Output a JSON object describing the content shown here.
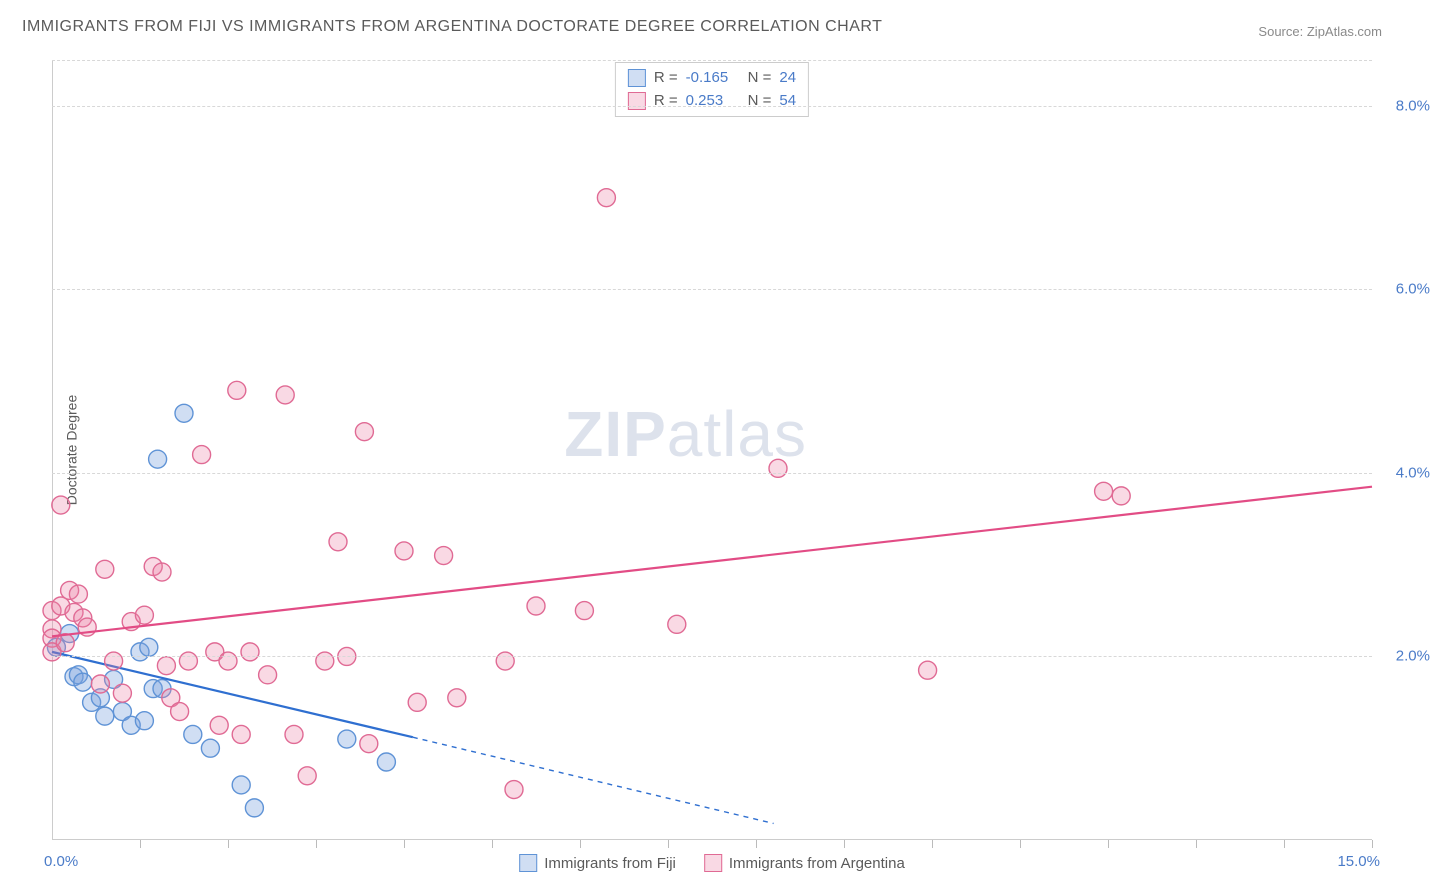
{
  "title": "IMMIGRANTS FROM FIJI VS IMMIGRANTS FROM ARGENTINA DOCTORATE DEGREE CORRELATION CHART",
  "source_label": "Source:",
  "source_value": "ZipAtlas.com",
  "watermark_bold": "ZIP",
  "watermark_light": "atlas",
  "chart": {
    "type": "scatter",
    "y_axis_title": "Doctorate Degree",
    "xlim": [
      0,
      15
    ],
    "ylim": [
      0,
      8.5
    ],
    "x_label_min": "0.0%",
    "x_label_max": "15.0%",
    "y_ticks": [
      {
        "v": 2.0,
        "label": "2.0%"
      },
      {
        "v": 4.0,
        "label": "4.0%"
      },
      {
        "v": 6.0,
        "label": "6.0%"
      },
      {
        "v": 8.0,
        "label": "8.0%"
      }
    ],
    "x_ticks_at": [
      1,
      2,
      3,
      4,
      5,
      6,
      7,
      8,
      9,
      10,
      11,
      12,
      13,
      14,
      15
    ],
    "background_color": "#ffffff",
    "grid_color": "#d8d8d8",
    "marker_radius": 9,
    "marker_stroke_width": 1.4,
    "series": [
      {
        "id": "fiji",
        "label": "Immigrants from Fiji",
        "fill": "rgba(120,160,220,0.35)",
        "stroke": "#5f93d6",
        "r_value": "-0.165",
        "n_value": "24",
        "trend_solid": {
          "x1": 0,
          "y1": 2.05,
          "x2": 4.1,
          "y2": 1.12
        },
        "trend_dashed": {
          "x1": 4.1,
          "y1": 1.12,
          "x2": 8.2,
          "y2": 0.18
        },
        "trend_color": "#2f6fd0",
        "trend_width": 2.2,
        "points": [
          [
            0.05,
            2.1
          ],
          [
            0.2,
            2.25
          ],
          [
            0.25,
            1.78
          ],
          [
            0.3,
            1.8
          ],
          [
            0.35,
            1.72
          ],
          [
            0.45,
            1.5
          ],
          [
            0.55,
            1.55
          ],
          [
            0.6,
            1.35
          ],
          [
            0.7,
            1.75
          ],
          [
            0.8,
            1.4
          ],
          [
            0.9,
            1.25
          ],
          [
            1.0,
            2.05
          ],
          [
            1.05,
            1.3
          ],
          [
            1.1,
            2.1
          ],
          [
            1.15,
            1.65
          ],
          [
            1.2,
            4.15
          ],
          [
            1.25,
            1.65
          ],
          [
            1.5,
            4.65
          ],
          [
            1.6,
            1.15
          ],
          [
            1.8,
            1.0
          ],
          [
            2.15,
            0.6
          ],
          [
            2.3,
            0.35
          ],
          [
            3.35,
            1.1
          ],
          [
            3.8,
            0.85
          ]
        ]
      },
      {
        "id": "argentina",
        "label": "Immigrants from Argentina",
        "fill": "rgba(235,130,165,0.30)",
        "stroke": "#e06a94",
        "r_value": "0.253",
        "n_value": "54",
        "trend_solid": {
          "x1": 0,
          "y1": 2.22,
          "x2": 15.0,
          "y2": 3.85
        },
        "trend_dashed": null,
        "trend_color": "#e24c85",
        "trend_width": 2.2,
        "points": [
          [
            0.0,
            2.5
          ],
          [
            0.0,
            2.3
          ],
          [
            0.0,
            2.2
          ],
          [
            0.0,
            2.05
          ],
          [
            0.1,
            2.55
          ],
          [
            0.1,
            3.65
          ],
          [
            0.15,
            2.15
          ],
          [
            0.2,
            2.72
          ],
          [
            0.25,
            2.48
          ],
          [
            0.3,
            2.68
          ],
          [
            0.35,
            2.42
          ],
          [
            0.4,
            2.32
          ],
          [
            0.55,
            1.7
          ],
          [
            0.6,
            2.95
          ],
          [
            0.7,
            1.95
          ],
          [
            0.8,
            1.6
          ],
          [
            0.9,
            2.38
          ],
          [
            1.05,
            2.45
          ],
          [
            1.15,
            2.98
          ],
          [
            1.25,
            2.92
          ],
          [
            1.3,
            1.9
          ],
          [
            1.35,
            1.55
          ],
          [
            1.45,
            1.4
          ],
          [
            1.55,
            1.95
          ],
          [
            1.7,
            4.2
          ],
          [
            1.85,
            2.05
          ],
          [
            1.9,
            1.25
          ],
          [
            2.0,
            1.95
          ],
          [
            2.1,
            4.9
          ],
          [
            2.15,
            1.15
          ],
          [
            2.25,
            2.05
          ],
          [
            2.45,
            1.8
          ],
          [
            2.65,
            4.85
          ],
          [
            2.75,
            1.15
          ],
          [
            2.9,
            0.7
          ],
          [
            3.1,
            1.95
          ],
          [
            3.25,
            3.25
          ],
          [
            3.35,
            2.0
          ],
          [
            3.55,
            4.45
          ],
          [
            3.6,
            1.05
          ],
          [
            4.0,
            3.15
          ],
          [
            4.15,
            1.5
          ],
          [
            4.45,
            3.1
          ],
          [
            4.6,
            1.55
          ],
          [
            5.15,
            1.95
          ],
          [
            5.25,
            0.55
          ],
          [
            5.5,
            2.55
          ],
          [
            6.05,
            2.5
          ],
          [
            6.3,
            7.0
          ],
          [
            7.1,
            2.35
          ],
          [
            8.25,
            4.05
          ],
          [
            9.95,
            1.85
          ],
          [
            11.95,
            3.8
          ],
          [
            12.15,
            3.75
          ]
        ]
      }
    ],
    "legend": {
      "r_label": "R =",
      "n_label": "N ="
    },
    "bottom_legend": true
  }
}
